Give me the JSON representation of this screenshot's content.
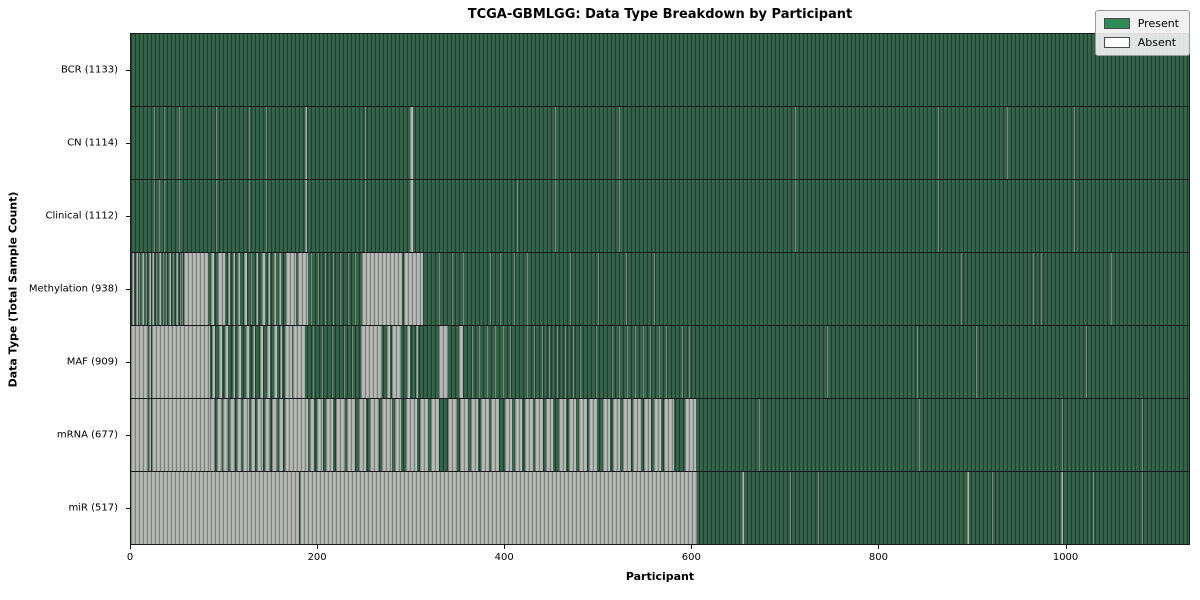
{
  "title": "TCGA-GBMLGG: Data Type Breakdown by Participant",
  "x_axis_label": "Participant",
  "y_axis_label": "Data Type (Total Sample Count)",
  "legend": {
    "present_label": "Present",
    "absent_label": "Absent"
  },
  "colors": {
    "present": "#2e8b57",
    "absent": "#ffffff",
    "legend_background": "#f0f0f0",
    "bar_edge": "#1c3f2e",
    "absent_rendered": "#a8aba8"
  },
  "x_ticks": [
    0,
    200,
    400,
    600,
    800,
    1000
  ],
  "chart_data": {
    "type": "heatmap",
    "title": "TCGA-GBMLGG: Data Type Breakdown by Participant",
    "xlabel": "Participant",
    "ylabel": "Data Type (Total Sample Count)",
    "xlim": [
      0,
      1133
    ],
    "n_participants": 1133,
    "legend_position": "upper right",
    "value_encoding": {
      "present": "green",
      "absent": "white"
    },
    "rows": [
      {
        "name": "BCR",
        "label": "BCR (1133)",
        "present_count": 1133,
        "absent_runs": []
      },
      {
        "name": "CN",
        "label": "CN (1114)",
        "present_count": 1114,
        "absent_runs": [
          [
            25,
            26
          ],
          [
            35,
            36
          ],
          [
            51,
            52
          ],
          [
            91,
            92
          ],
          [
            126,
            127
          ],
          [
            145,
            146
          ],
          [
            186,
            189
          ],
          [
            251,
            252
          ],
          [
            299,
            302
          ],
          [
            454,
            455
          ],
          [
            523,
            524
          ],
          [
            711,
            712
          ],
          [
            864,
            865
          ],
          [
            938,
            939
          ],
          [
            1010,
            1011
          ]
        ]
      },
      {
        "name": "Clinical",
        "label": "Clinical (1112)",
        "present_count": 1112,
        "absent_runs": [
          [
            25,
            26
          ],
          [
            30,
            31
          ],
          [
            35,
            36
          ],
          [
            51,
            52
          ],
          [
            91,
            92
          ],
          [
            126,
            127
          ],
          [
            145,
            146
          ],
          [
            186,
            189
          ],
          [
            251,
            252
          ],
          [
            299,
            302
          ],
          [
            413,
            414
          ],
          [
            454,
            455
          ],
          [
            523,
            524
          ],
          [
            611,
            612
          ],
          [
            711,
            712
          ],
          [
            864,
            865
          ],
          [
            1010,
            1011
          ]
        ]
      },
      {
        "name": "Methylation",
        "label": "Methylation (938)",
        "present_count": 938,
        "absent_runs": [
          [
            1,
            3
          ],
          [
            5,
            7
          ],
          [
            9,
            10
          ],
          [
            12,
            14
          ],
          [
            16,
            17
          ],
          [
            19,
            21
          ],
          [
            23,
            25
          ],
          [
            27,
            28
          ],
          [
            30,
            32
          ],
          [
            34,
            35
          ],
          [
            37,
            39
          ],
          [
            41,
            43
          ],
          [
            45,
            46
          ],
          [
            48,
            50
          ],
          [
            52,
            54
          ],
          [
            55,
            56
          ],
          [
            57,
            83
          ],
          [
            86,
            89
          ],
          [
            93,
            101
          ],
          [
            104,
            106
          ],
          [
            109,
            111
          ],
          [
            115,
            117
          ],
          [
            121,
            124
          ],
          [
            128,
            130
          ],
          [
            134,
            136
          ],
          [
            140,
            143
          ],
          [
            147,
            149
          ],
          [
            153,
            155
          ],
          [
            159,
            161
          ],
          [
            166,
            177
          ],
          [
            179,
            190
          ],
          [
            193,
            194
          ],
          [
            200,
            201
          ],
          [
            208,
            209
          ],
          [
            216,
            217
          ],
          [
            224,
            225
          ],
          [
            232,
            233
          ],
          [
            240,
            241
          ],
          [
            247,
            290
          ],
          [
            292,
            313
          ],
          [
            330,
            331
          ],
          [
            344,
            345
          ],
          [
            356,
            357
          ],
          [
            370,
            371
          ],
          [
            384,
            385
          ],
          [
            395,
            396
          ],
          [
            410,
            411
          ],
          [
            424,
            425
          ],
          [
            445,
            446
          ],
          [
            470,
            471
          ],
          [
            500,
            501
          ],
          [
            530,
            531
          ],
          [
            560,
            561
          ],
          [
            889,
            890
          ],
          [
            966,
            967
          ],
          [
            975,
            976
          ],
          [
            1050,
            1051
          ]
        ]
      },
      {
        "name": "MAF",
        "label": "MAF (909)",
        "present_count": 909,
        "absent_runs": [
          [
            0,
            18
          ],
          [
            19,
            21
          ],
          [
            22,
            85
          ],
          [
            87,
            90
          ],
          [
            94,
            97
          ],
          [
            101,
            104
          ],
          [
            109,
            111
          ],
          [
            115,
            118
          ],
          [
            123,
            126
          ],
          [
            131,
            133
          ],
          [
            138,
            141
          ],
          [
            146,
            149
          ],
          [
            153,
            156
          ],
          [
            160,
            162
          ],
          [
            165,
            172
          ],
          [
            174,
            186
          ],
          [
            195,
            196
          ],
          [
            205,
            206
          ],
          [
            215,
            216
          ],
          [
            228,
            229
          ],
          [
            237,
            238
          ],
          [
            246,
            269
          ],
          [
            274,
            277
          ],
          [
            280,
            289
          ],
          [
            296,
            299
          ],
          [
            305,
            307
          ],
          [
            330,
            339
          ],
          [
            351,
            356
          ],
          [
            365,
            366
          ],
          [
            373,
            374
          ],
          [
            381,
            382
          ],
          [
            390,
            391
          ],
          [
            398,
            399
          ],
          [
            406,
            407
          ],
          [
            415,
            416
          ],
          [
            424,
            425
          ],
          [
            432,
            433
          ],
          [
            440,
            441
          ],
          [
            448,
            449
          ],
          [
            456,
            457
          ],
          [
            465,
            466
          ],
          [
            473,
            474
          ],
          [
            481,
            482
          ],
          [
            490,
            491
          ],
          [
            498,
            499
          ],
          [
            506,
            507
          ],
          [
            515,
            516
          ],
          [
            523,
            524
          ],
          [
            531,
            532
          ],
          [
            540,
            541
          ],
          [
            548,
            549
          ],
          [
            556,
            557
          ],
          [
            565,
            566
          ],
          [
            573,
            574
          ],
          [
            581,
            582
          ],
          [
            590,
            591
          ],
          [
            598,
            599
          ],
          [
            745,
            746
          ],
          [
            842,
            843
          ],
          [
            905,
            906
          ],
          [
            1023,
            1024
          ]
        ]
      },
      {
        "name": "mRNA",
        "label": "mRNA (677)",
        "present_count": 677,
        "absent_runs": [
          [
            0,
            18
          ],
          [
            19,
            21
          ],
          [
            22,
            85
          ],
          [
            85,
            90
          ],
          [
            92,
            97
          ],
          [
            99,
            104
          ],
          [
            106,
            111
          ],
          [
            113,
            118
          ],
          [
            120,
            126
          ],
          [
            128,
            133
          ],
          [
            135,
            141
          ],
          [
            143,
            149
          ],
          [
            151,
            156
          ],
          [
            158,
            163
          ],
          [
            165,
            190
          ],
          [
            192,
            196
          ],
          [
            199,
            206
          ],
          [
            209,
            216
          ],
          [
            219,
            229
          ],
          [
            231,
            240
          ],
          [
            244,
            252
          ],
          [
            256,
            266
          ],
          [
            269,
            280
          ],
          [
            283,
            289
          ],
          [
            295,
            306
          ],
          [
            309,
            318
          ],
          [
            321,
            330
          ],
          [
            340,
            349
          ],
          [
            352,
            361
          ],
          [
            364,
            372
          ],
          [
            375,
            383
          ],
          [
            386,
            394
          ],
          [
            400,
            408
          ],
          [
            411,
            419
          ],
          [
            422,
            430
          ],
          [
            433,
            441
          ],
          [
            444,
            452
          ],
          [
            458,
            466
          ],
          [
            469,
            477
          ],
          [
            480,
            488
          ],
          [
            491,
            499
          ],
          [
            505,
            513
          ],
          [
            516,
            524
          ],
          [
            527,
            535
          ],
          [
            538,
            546
          ],
          [
            549,
            557
          ],
          [
            560,
            568
          ],
          [
            571,
            581
          ],
          [
            593,
            605
          ],
          [
            673,
            674
          ],
          [
            844,
            845
          ],
          [
            944,
            945
          ],
          [
            997,
            998
          ],
          [
            1083,
            1084
          ]
        ]
      },
      {
        "name": "miR",
        "label": "miR (517)",
        "present_count": 517,
        "absent_runs": [
          [
            0,
            180
          ],
          [
            181,
            249
          ],
          [
            250,
            606
          ],
          [
            654,
            656
          ],
          [
            706,
            707
          ],
          [
            736,
            737
          ],
          [
            895,
            897
          ],
          [
            922,
            923
          ],
          [
            944,
            945
          ],
          [
            996,
            998
          ],
          [
            1030,
            1031
          ],
          [
            1083,
            1084
          ]
        ]
      }
    ]
  }
}
